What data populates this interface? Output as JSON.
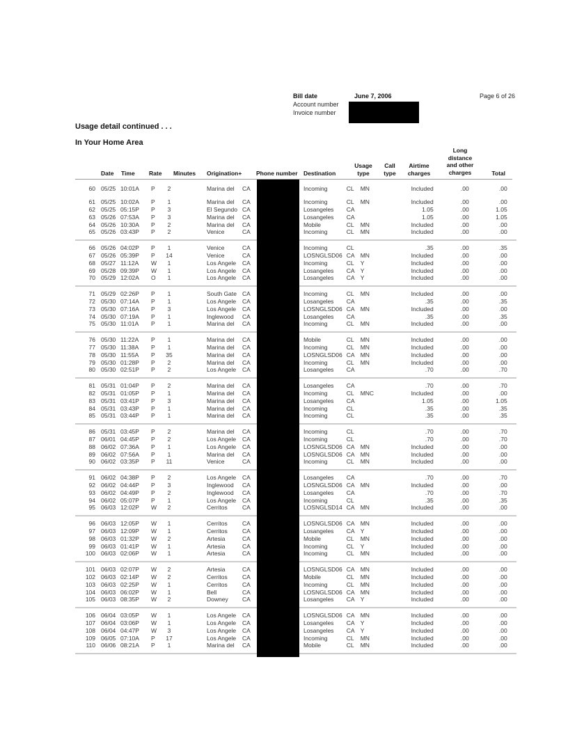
{
  "header": {
    "bill_date_label": "Bill date",
    "bill_date": "June 7, 2006",
    "account_number_label": "Account number",
    "invoice_number_label": "Invoice number",
    "page": "Page 6 of 26"
  },
  "section_title": "Usage detail continued . . .",
  "subsection_title": "In Your Home Area",
  "table": {
    "headers": {
      "date": "Date",
      "time": "Time",
      "rate": "Rate",
      "minutes": "Minutes",
      "origination": "Origination+",
      "phone": "Phone number",
      "destination": "Destination",
      "usage_type_1": "Usage",
      "usage_type_2": "type",
      "call_type_1": "Call",
      "call_type_2": "type",
      "airtime_1": "Airtime",
      "airtime_2": "charges",
      "ld_1": "Long",
      "ld_2": "distance",
      "ld_3": "and other",
      "ld_4": "charges",
      "total": "Total"
    },
    "groups": [
      [
        [
          "60",
          "05/25",
          "10:01A",
          "P",
          "2",
          "Marina del",
          "CA",
          "Incoming",
          "CL",
          "MN",
          "",
          "Included",
          ".00",
          ".00"
        ]
      ],
      [
        [
          "61",
          "05/25",
          "10:02A",
          "P",
          "1",
          "Marina del",
          "CA",
          "Incoming",
          "CL",
          "MN",
          "",
          "Included",
          ".00",
          ".00"
        ],
        [
          "62",
          "05/25",
          "05:15P",
          "P",
          "3",
          "El Segundo",
          "CA",
          "Losangeles",
          "CA",
          "",
          "",
          "1.05",
          ".00",
          "1.05"
        ],
        [
          "63",
          "05/26",
          "07:53A",
          "P",
          "3",
          "Marina del",
          "CA",
          "Losangeles",
          "CA",
          "",
          "",
          "1.05",
          ".00",
          "1.05"
        ],
        [
          "64",
          "05/26",
          "10:30A",
          "P",
          "2",
          "Marina del",
          "CA",
          "Mobile",
          "CL",
          "MN",
          "",
          "Included",
          ".00",
          ".00"
        ],
        [
          "65",
          "05/26",
          "03:43P",
          "P",
          "2",
          "Venice",
          "CA",
          "Incoming",
          "CL",
          "MN",
          "",
          "Included",
          ".00",
          ".00"
        ]
      ],
      [
        [
          "66",
          "05/26",
          "04:02P",
          "P",
          "1",
          "Venice",
          "CA",
          "Incoming",
          "CL",
          "",
          "",
          ".35",
          ".00",
          ".35"
        ],
        [
          "67",
          "05/26",
          "05:39P",
          "P",
          "14",
          "Venice",
          "CA",
          "LOSNGLSD06",
          "CA",
          "MN",
          "",
          "Included",
          ".00",
          ".00"
        ],
        [
          "68",
          "05/27",
          "11:12A",
          "W",
          "1",
          "Los Angele",
          "CA",
          "Incoming",
          "CL",
          "Y",
          "",
          "Included",
          ".00",
          ".00"
        ],
        [
          "69",
          "05/28",
          "09:39P",
          "W",
          "1",
          "Los Angele",
          "CA",
          "Losangeles",
          "CA",
          "Y",
          "",
          "Included",
          ".00",
          ".00"
        ],
        [
          "70",
          "05/29",
          "12:02A",
          "O",
          "1",
          "Los Angele",
          "CA",
          "Losangeles",
          "CA",
          "Y",
          "",
          "Included",
          ".00",
          ".00"
        ]
      ],
      [
        [
          "71",
          "05/29",
          "02:26P",
          "P",
          "1",
          "South Gate",
          "CA",
          "Incoming",
          "CL",
          "MN",
          "",
          "Included",
          ".00",
          ".00"
        ],
        [
          "72",
          "05/30",
          "07:14A",
          "P",
          "1",
          "Los Angele",
          "CA",
          "Losangeles",
          "CA",
          "",
          "",
          ".35",
          ".00",
          ".35"
        ],
        [
          "73",
          "05/30",
          "07:16A",
          "P",
          "3",
          "Los Angele",
          "CA",
          "LOSNGLSD06",
          "CA",
          "MN",
          "",
          "Included",
          ".00",
          ".00"
        ],
        [
          "74",
          "05/30",
          "07:19A",
          "P",
          "1",
          "Inglewood",
          "CA",
          "Losangeles",
          "CA",
          "",
          "",
          ".35",
          ".00",
          ".35"
        ],
        [
          "75",
          "05/30",
          "11:01A",
          "P",
          "1",
          "Marina del",
          "CA",
          "Incoming",
          "CL",
          "MN",
          "",
          "Included",
          ".00",
          ".00"
        ]
      ],
      [
        [
          "76",
          "05/30",
          "11:22A",
          "P",
          "1",
          "Marina del",
          "CA",
          "Mobile",
          "CL",
          "MN",
          "",
          "Included",
          ".00",
          ".00"
        ],
        [
          "77",
          "05/30",
          "11:38A",
          "P",
          "1",
          "Marina del",
          "CA",
          "Incoming",
          "CL",
          "MN",
          "",
          "Included",
          ".00",
          ".00"
        ],
        [
          "78",
          "05/30",
          "11:55A",
          "P",
          "35",
          "Marina del",
          "CA",
          "LOSNGLSD06",
          "CA",
          "MN",
          "",
          "Included",
          ".00",
          ".00"
        ],
        [
          "79",
          "05/30",
          "01:28P",
          "P",
          "2",
          "Marina del",
          "CA",
          "Incoming",
          "CL",
          "MN",
          "",
          "Included",
          ".00",
          ".00"
        ],
        [
          "80",
          "05/30",
          "02:51P",
          "P",
          "2",
          "Los Angele",
          "CA",
          "Losangeles",
          "CA",
          "",
          "",
          ".70",
          ".00",
          ".70"
        ]
      ],
      [
        [
          "81",
          "05/31",
          "01:04P",
          "P",
          "2",
          "Marina del",
          "CA",
          "Losangeles",
          "CA",
          "",
          "",
          ".70",
          ".00",
          ".70"
        ],
        [
          "82",
          "05/31",
          "01:05P",
          "P",
          "1",
          "Marina del",
          "CA",
          "Incoming",
          "CL",
          "MNC",
          "",
          "Included",
          ".00",
          ".00"
        ],
        [
          "83",
          "05/31",
          "03:41P",
          "P",
          "3",
          "Marina del",
          "CA",
          "Losangeles",
          "CA",
          "",
          "",
          "1.05",
          ".00",
          "1.05"
        ],
        [
          "84",
          "05/31",
          "03:43P",
          "P",
          "1",
          "Marina del",
          "CA",
          "Incoming",
          "CL",
          "",
          "",
          ".35",
          ".00",
          ".35"
        ],
        [
          "85",
          "05/31",
          "03:44P",
          "P",
          "1",
          "Marina del",
          "CA",
          "Incoming",
          "CL",
          "",
          "",
          ".35",
          ".00",
          ".35"
        ]
      ],
      [
        [
          "86",
          "05/31",
          "03:45P",
          "P",
          "2",
          "Marina del",
          "CA",
          "Incoming",
          "CL",
          "",
          "",
          ".70",
          ".00",
          ".70"
        ],
        [
          "87",
          "06/01",
          "04:45P",
          "P",
          "2",
          "Los Angele",
          "CA",
          "Incoming",
          "CL",
          "",
          "",
          ".70",
          ".00",
          ".70"
        ],
        [
          "88",
          "06/02",
          "07:36A",
          "P",
          "1",
          "Los Angele",
          "CA",
          "LOSNGLSD06",
          "CA",
          "MN",
          "",
          "Included",
          ".00",
          ".00"
        ],
        [
          "89",
          "06/02",
          "07:56A",
          "P",
          "1",
          "Marina del",
          "CA",
          "LOSNGLSD06",
          "CA",
          "MN",
          "",
          "Included",
          ".00",
          ".00"
        ],
        [
          "90",
          "06/02",
          "03:35P",
          "P",
          "11",
          "Venice",
          "CA",
          "Incoming",
          "CL",
          "MN",
          "",
          "Included",
          ".00",
          ".00"
        ]
      ],
      [
        [
          "91",
          "06/02",
          "04:38P",
          "P",
          "2",
          "Los Angele",
          "CA",
          "Losangeles",
          "CA",
          "",
          "",
          ".70",
          ".00",
          ".70"
        ],
        [
          "92",
          "06/02",
          "04:44P",
          "P",
          "3",
          "Inglewood",
          "CA",
          "LOSNGLSD06",
          "CA",
          "MN",
          "",
          "Included",
          ".00",
          ".00"
        ],
        [
          "93",
          "06/02",
          "04:49P",
          "P",
          "2",
          "Inglewood",
          "CA",
          "Losangeles",
          "CA",
          "",
          "",
          ".70",
          ".00",
          ".70"
        ],
        [
          "94",
          "06/02",
          "05:07P",
          "P",
          "1",
          "Los Angele",
          "CA",
          "Incoming",
          "CL",
          "",
          "",
          ".35",
          ".00",
          ".35"
        ],
        [
          "95",
          "06/03",
          "12:02P",
          "W",
          "2",
          "Cerritos",
          "CA",
          "LOSNGLSD14",
          "CA",
          "MN",
          "",
          "Included",
          ".00",
          ".00"
        ]
      ],
      [
        [
          "96",
          "06/03",
          "12:05P",
          "W",
          "1",
          "Cerritos",
          "CA",
          "LOSNGLSD06",
          "CA",
          "MN",
          "",
          "Included",
          ".00",
          ".00"
        ],
        [
          "97",
          "06/03",
          "12:09P",
          "W",
          "1",
          "Cerritos",
          "CA",
          "Losangeles",
          "CA",
          "Y",
          "",
          "Included",
          ".00",
          ".00"
        ],
        [
          "98",
          "06/03",
          "01:32P",
          "W",
          "2",
          "Artesia",
          "CA",
          "Mobile",
          "CL",
          "MN",
          "",
          "Included",
          ".00",
          ".00"
        ],
        [
          "99",
          "06/03",
          "01:41P",
          "W",
          "1",
          "Artesia",
          "CA",
          "Incoming",
          "CL",
          "Y",
          "",
          "Included",
          ".00",
          ".00"
        ],
        [
          "100",
          "06/03",
          "02:06P",
          "W",
          "1",
          "Artesia",
          "CA",
          "Incoming",
          "CL",
          "MN",
          "",
          "Included",
          ".00",
          ".00"
        ]
      ],
      [
        [
          "101",
          "06/03",
          "02:07P",
          "W",
          "2",
          "Artesia",
          "CA",
          "LOSNGLSD06",
          "CA",
          "MN",
          "",
          "Included",
          ".00",
          ".00"
        ],
        [
          "102",
          "06/03",
          "02:14P",
          "W",
          "2",
          "Cerritos",
          "CA",
          "Mobile",
          "CL",
          "MN",
          "",
          "Included",
          ".00",
          ".00"
        ],
        [
          "103",
          "06/03",
          "02:25P",
          "W",
          "1",
          "Cerritos",
          "CA",
          "Incoming",
          "CL",
          "MN",
          "",
          "Included",
          ".00",
          ".00"
        ],
        [
          "104",
          "06/03",
          "06:02P",
          "W",
          "1",
          "Bell",
          "CA",
          "LOSNGLSD06",
          "CA",
          "MN",
          "",
          "Included",
          ".00",
          ".00"
        ],
        [
          "105",
          "06/03",
          "08:35P",
          "W",
          "2",
          "Downey",
          "CA",
          "Losangeles",
          "CA",
          "Y",
          "",
          "Included",
          ".00",
          ".00"
        ]
      ],
      [
        [
          "106",
          "06/04",
          "03:05P",
          "W",
          "1",
          "Los Angele",
          "CA",
          "LOSNGLSD06",
          "CA",
          "MN",
          "",
          "Included",
          ".00",
          ".00"
        ],
        [
          "107",
          "06/04",
          "03:06P",
          "W",
          "1",
          "Los Angele",
          "CA",
          "Losangeles",
          "CA",
          "Y",
          "",
          "Included",
          ".00",
          ".00"
        ],
        [
          "108",
          "06/04",
          "04:47P",
          "W",
          "3",
          "Los Angele",
          "CA",
          "Losangeles",
          "CA",
          "Y",
          "",
          "Included",
          ".00",
          ".00"
        ],
        [
          "109",
          "06/05",
          "07:10A",
          "P",
          "17",
          "Los Angele",
          "CA",
          "Incoming",
          "CL",
          "MN",
          "",
          "Included",
          ".00",
          ".00"
        ],
        [
          "110",
          "06/06",
          "08:21A",
          "P",
          "1",
          "Marina del",
          "CA",
          "Mobile",
          "CL",
          "MN",
          "",
          "Included",
          ".00",
          ".00"
        ]
      ]
    ]
  }
}
